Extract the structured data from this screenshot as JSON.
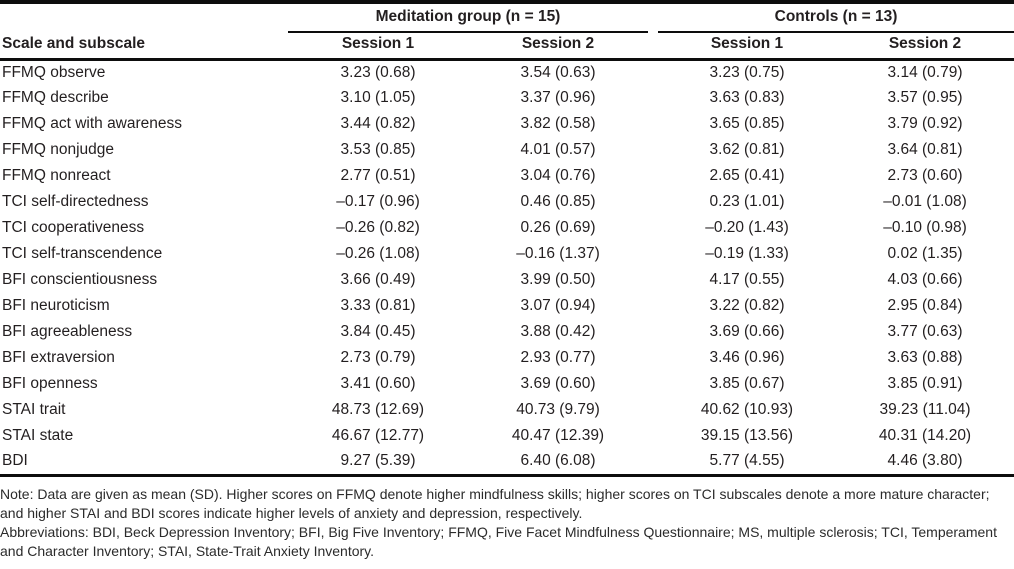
{
  "table": {
    "col_header_label": "Scale and subscale",
    "groups": [
      {
        "label": "Meditation group (n = 15)"
      },
      {
        "label": "Controls (n = 13)"
      }
    ],
    "session_headers": [
      "Session 1",
      "Session 2",
      "Session 1",
      "Session 2"
    ],
    "rows": [
      {
        "label": "FFMQ observe",
        "values": [
          "3.23 (0.68)",
          "3.54 (0.63)",
          "3.23 (0.75)",
          "3.14 (0.79)"
        ]
      },
      {
        "label": "FFMQ describe",
        "values": [
          "3.10 (1.05)",
          "3.37 (0.96)",
          "3.63 (0.83)",
          "3.57 (0.95)"
        ]
      },
      {
        "label": "FFMQ act with awareness",
        "values": [
          "3.44 (0.82)",
          "3.82 (0.58)",
          "3.65 (0.85)",
          "3.79 (0.92)"
        ]
      },
      {
        "label": "FFMQ nonjudge",
        "values": [
          "3.53 (0.85)",
          "4.01 (0.57)",
          "3.62 (0.81)",
          "3.64 (0.81)"
        ]
      },
      {
        "label": "FFMQ nonreact",
        "values": [
          "2.77 (0.51)",
          "3.04 (0.76)",
          "2.65 (0.41)",
          "2.73 (0.60)"
        ]
      },
      {
        "label": "TCI self-directedness",
        "values": [
          "–0.17 (0.96)",
          "0.46 (0.85)",
          "0.23 (1.01)",
          "–0.01 (1.08)"
        ]
      },
      {
        "label": "TCI cooperativeness",
        "values": [
          "–0.26 (0.82)",
          "0.26 (0.69)",
          "–0.20 (1.43)",
          "–0.10 (0.98)"
        ]
      },
      {
        "label": "TCI self-transcendence",
        "values": [
          "–0.26 (1.08)",
          "–0.16 (1.37)",
          "–0.19 (1.33)",
          "0.02 (1.35)"
        ]
      },
      {
        "label": "BFI conscientiousness",
        "values": [
          "3.66 (0.49)",
          "3.99 (0.50)",
          "4.17 (0.55)",
          "4.03 (0.66)"
        ]
      },
      {
        "label": "BFI neuroticism",
        "values": [
          "3.33 (0.81)",
          "3.07 (0.94)",
          "3.22 (0.82)",
          "2.95 (0.84)"
        ]
      },
      {
        "label": "BFI agreeableness",
        "values": [
          "3.84 (0.45)",
          "3.88 (0.42)",
          "3.69 (0.66)",
          "3.77 (0.63)"
        ]
      },
      {
        "label": "BFI extraversion",
        "values": [
          "2.73 (0.79)",
          "2.93 (0.77)",
          "3.46 (0.96)",
          "3.63 (0.88)"
        ]
      },
      {
        "label": "BFI openness",
        "values": [
          "3.41 (0.60)",
          "3.69 (0.60)",
          "3.85 (0.67)",
          "3.85 (0.91)"
        ]
      },
      {
        "label": "STAI trait",
        "values": [
          "48.73 (12.69)",
          "40.73 (9.79)",
          "40.62 (10.93)",
          "39.23 (11.04)"
        ]
      },
      {
        "label": "STAI state",
        "values": [
          "46.67 (12.77)",
          "40.47 (12.39)",
          "39.15 (13.56)",
          "40.31 (14.20)"
        ]
      },
      {
        "label": "BDI",
        "values": [
          "9.27 (5.39)",
          "6.40 (6.08)",
          "5.77 (4.55)",
          "4.46 (3.80)"
        ]
      }
    ]
  },
  "notes": {
    "note": "Note: Data are given as mean (SD). Higher scores on FFMQ denote higher mindfulness skills; higher scores on TCI subscales denote a more mature character; and higher STAI and BDI scores indicate higher levels of anxiety and depression, respectively.",
    "abbreviations": "Abbreviations: BDI, Beck Depression Inventory; BFI, Big Five Inventory; FFMQ, Five Facet Mindfulness Questionnaire; MS, multiple sclerosis; TCI, Temperament and Character Inventory; STAI, State-Trait Anxiety Inventory."
  },
  "colors": {
    "text": "#231f20",
    "rule": "#0d0d0d",
    "background": "#ffffff"
  }
}
